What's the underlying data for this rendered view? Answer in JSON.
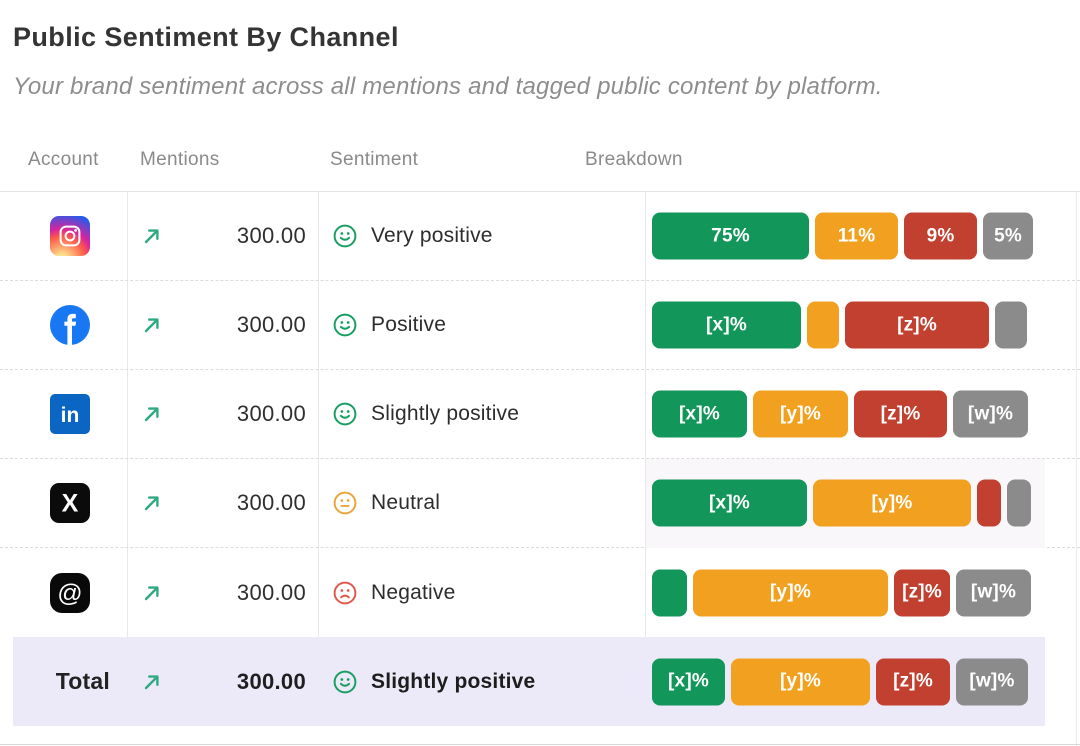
{
  "page": {
    "title": "Public Sentiment By Channel",
    "subtitle": "Your brand sentiment across all mentions and tagged public content by platform."
  },
  "table": {
    "headers": {
      "account": "Account",
      "mentions": "Mentions",
      "sentiment": "Sentiment",
      "breakdown": "Breakdown"
    },
    "bar_colors": {
      "green": "#12965A",
      "orange": "#F1A11F",
      "red": "#C2402F",
      "gray": "#8B8B8B"
    },
    "sentiment_colors": {
      "positive": "#189E63",
      "neutral": "#E9A43C",
      "negative": "#E2574B"
    },
    "trend_color": "#2FA981",
    "total_row_bg": "#ECEAF8",
    "rows": [
      {
        "id": "instagram",
        "account": "Instagram",
        "trend": "up",
        "mentions": "300.00",
        "sentiment": {
          "mouth": "smile",
          "color": "positive",
          "label": "Very positive"
        },
        "breakdown": [
          {
            "label": "75%",
            "color": "green",
            "width": 157
          },
          {
            "label": "11%",
            "color": "orange",
            "width": 83
          },
          {
            "label": "9%",
            "color": "red",
            "width": 73
          },
          {
            "label": "5%",
            "color": "gray",
            "width": 50
          }
        ]
      },
      {
        "id": "facebook",
        "account": "Facebook",
        "trend": "up",
        "mentions": "300.00",
        "sentiment": {
          "mouth": "smile",
          "color": "positive",
          "label": "Positive"
        },
        "breakdown": [
          {
            "label": "[x]%",
            "color": "green",
            "width": 149
          },
          {
            "label": "",
            "color": "orange",
            "width": 32
          },
          {
            "label": "[z]%",
            "color": "red",
            "width": 144
          },
          {
            "label": "",
            "color": "gray",
            "width": 32
          }
        ]
      },
      {
        "id": "linkedin",
        "account": "LinkedIn",
        "trend": "up",
        "mentions": "300.00",
        "sentiment": {
          "mouth": "smile",
          "color": "positive",
          "label": "Slightly positive"
        },
        "breakdown": [
          {
            "label": "[x]%",
            "color": "green",
            "width": 95
          },
          {
            "label": "[y]%",
            "color": "orange",
            "width": 95
          },
          {
            "label": "[z]%",
            "color": "red",
            "width": 93
          },
          {
            "label": "[w]%",
            "color": "gray",
            "width": 75
          }
        ]
      },
      {
        "id": "x",
        "account": "X",
        "trend": "up",
        "mentions": "300.00",
        "sentiment": {
          "mouth": "neutral",
          "color": "neutral",
          "label": "Neutral"
        },
        "breakdown_highlight": true,
        "breakdown": [
          {
            "label": "[x]%",
            "color": "green",
            "width": 155
          },
          {
            "label": "[y]%",
            "color": "orange",
            "width": 158
          },
          {
            "label": "",
            "color": "red",
            "width": 24
          },
          {
            "label": "",
            "color": "gray",
            "width": 24
          }
        ]
      },
      {
        "id": "threads",
        "account": "Threads",
        "trend": "up",
        "mentions": "300.00",
        "sentiment": {
          "mouth": "frown",
          "color": "negative",
          "label": "Negative"
        },
        "breakdown": [
          {
            "label": "",
            "color": "green",
            "width": 35
          },
          {
            "label": "[y]%",
            "color": "orange",
            "width": 195
          },
          {
            "label": "[z]%",
            "color": "red",
            "width": 56
          },
          {
            "label": "[w]%",
            "color": "gray",
            "width": 75
          }
        ]
      },
      {
        "id": "total",
        "account": "Total",
        "is_total": true,
        "trend": "up",
        "mentions": "300.00",
        "sentiment": {
          "mouth": "smile",
          "color": "positive",
          "label": "Slightly positive"
        },
        "breakdown": [
          {
            "label": "[x]%",
            "color": "green",
            "width": 73
          },
          {
            "label": "[y]%",
            "color": "orange",
            "width": 139
          },
          {
            "label": "[z]%",
            "color": "red",
            "width": 74
          },
          {
            "label": "[w]%",
            "color": "gray",
            "width": 72
          }
        ]
      }
    ]
  }
}
